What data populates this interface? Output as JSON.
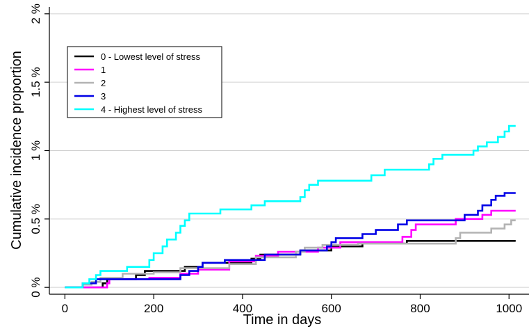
{
  "chart_data": {
    "type": "line",
    "title": "",
    "xlabel": "Time in days",
    "ylabel": "Cumulative incidence proportion",
    "xlim": [
      -35,
      1045
    ],
    "ylim": [
      -0.05,
      2.05
    ],
    "xticks": [
      0,
      200,
      400,
      600,
      800,
      1000
    ],
    "xtick_labels": [
      "0",
      "200",
      "400",
      "600",
      "800",
      "1000"
    ],
    "yticks": [
      0,
      0.5,
      1,
      1.5,
      2
    ],
    "ytick_labels": [
      "0 %",
      "0.5 %",
      "1 %",
      "1.5 %",
      "2 %"
    ],
    "grid": true,
    "legend_position": "top-left",
    "series": [
      {
        "name": "0 - Lowest level of stress",
        "color": "#000000",
        "points": [
          [
            0,
            0
          ],
          [
            85,
            0
          ],
          [
            85,
            0.03
          ],
          [
            95,
            0.03
          ],
          [
            95,
            0.06
          ],
          [
            160,
            0.06
          ],
          [
            160,
            0.09
          ],
          [
            180,
            0.09
          ],
          [
            180,
            0.12
          ],
          [
            270,
            0.12
          ],
          [
            270,
            0.15
          ],
          [
            310,
            0.15
          ],
          [
            310,
            0.18
          ],
          [
            420,
            0.18
          ],
          [
            420,
            0.21
          ],
          [
            440,
            0.21
          ],
          [
            440,
            0.24
          ],
          [
            530,
            0.24
          ],
          [
            530,
            0.27
          ],
          [
            600,
            0.27
          ],
          [
            600,
            0.3
          ],
          [
            670,
            0.3
          ],
          [
            670,
            0.32
          ],
          [
            770,
            0.32
          ],
          [
            770,
            0.34
          ],
          [
            1015,
            0.34
          ]
        ]
      },
      {
        "name": "1",
        "color": "#ff00ff",
        "points": [
          [
            0,
            0
          ],
          [
            95,
            0
          ],
          [
            95,
            0.03
          ],
          [
            100,
            0.03
          ],
          [
            100,
            0.06
          ],
          [
            190,
            0.06
          ],
          [
            190,
            0.07
          ],
          [
            260,
            0.07
          ],
          [
            260,
            0.1
          ],
          [
            300,
            0.1
          ],
          [
            300,
            0.13
          ],
          [
            370,
            0.13
          ],
          [
            370,
            0.19
          ],
          [
            430,
            0.19
          ],
          [
            430,
            0.23
          ],
          [
            480,
            0.23
          ],
          [
            480,
            0.26
          ],
          [
            570,
            0.26
          ],
          [
            570,
            0.29
          ],
          [
            620,
            0.29
          ],
          [
            620,
            0.33
          ],
          [
            670,
            0.33
          ],
          [
            670,
            0.33
          ],
          [
            760,
            0.33
          ],
          [
            760,
            0.37
          ],
          [
            780,
            0.37
          ],
          [
            780,
            0.42
          ],
          [
            790,
            0.42
          ],
          [
            790,
            0.46
          ],
          [
            880,
            0.46
          ],
          [
            880,
            0.5
          ],
          [
            940,
            0.5
          ],
          [
            940,
            0.53
          ],
          [
            960,
            0.53
          ],
          [
            960,
            0.56
          ],
          [
            1015,
            0.56
          ]
        ]
      },
      {
        "name": "2",
        "color": "#b3b3b3",
        "points": [
          [
            0,
            0
          ],
          [
            40,
            0
          ],
          [
            40,
            0.02
          ],
          [
            60,
            0.02
          ],
          [
            60,
            0.04
          ],
          [
            80,
            0.04
          ],
          [
            80,
            0.07
          ],
          [
            130,
            0.07
          ],
          [
            130,
            0.1
          ],
          [
            200,
            0.1
          ],
          [
            200,
            0.11
          ],
          [
            260,
            0.11
          ],
          [
            260,
            0.14
          ],
          [
            370,
            0.14
          ],
          [
            370,
            0.17
          ],
          [
            430,
            0.17
          ],
          [
            430,
            0.22
          ],
          [
            520,
            0.22
          ],
          [
            520,
            0.26
          ],
          [
            540,
            0.26
          ],
          [
            540,
            0.29
          ],
          [
            580,
            0.29
          ],
          [
            580,
            0.31
          ],
          [
            660,
            0.31
          ],
          [
            660,
            0.32
          ],
          [
            880,
            0.32
          ],
          [
            880,
            0.36
          ],
          [
            890,
            0.36
          ],
          [
            890,
            0.4
          ],
          [
            960,
            0.4
          ],
          [
            960,
            0.43
          ],
          [
            990,
            0.43
          ],
          [
            990,
            0.46
          ],
          [
            1005,
            0.46
          ],
          [
            1005,
            0.49
          ],
          [
            1015,
            0.49
          ]
        ]
      },
      {
        "name": "3",
        "color": "#0000e6",
        "points": [
          [
            0,
            0
          ],
          [
            40,
            0
          ],
          [
            40,
            0.03
          ],
          [
            70,
            0.03
          ],
          [
            70,
            0.06
          ],
          [
            260,
            0.06
          ],
          [
            260,
            0.09
          ],
          [
            280,
            0.09
          ],
          [
            280,
            0.12
          ],
          [
            300,
            0.12
          ],
          [
            300,
            0.15
          ],
          [
            310,
            0.15
          ],
          [
            310,
            0.18
          ],
          [
            360,
            0.18
          ],
          [
            360,
            0.2
          ],
          [
            450,
            0.2
          ],
          [
            450,
            0.24
          ],
          [
            530,
            0.24
          ],
          [
            530,
            0.27
          ],
          [
            590,
            0.27
          ],
          [
            590,
            0.3
          ],
          [
            600,
            0.3
          ],
          [
            600,
            0.33
          ],
          [
            610,
            0.33
          ],
          [
            610,
            0.36
          ],
          [
            670,
            0.36
          ],
          [
            670,
            0.39
          ],
          [
            700,
            0.39
          ],
          [
            700,
            0.42
          ],
          [
            750,
            0.42
          ],
          [
            750,
            0.46
          ],
          [
            770,
            0.46
          ],
          [
            770,
            0.49
          ],
          [
            900,
            0.49
          ],
          [
            900,
            0.53
          ],
          [
            930,
            0.53
          ],
          [
            930,
            0.56
          ],
          [
            940,
            0.56
          ],
          [
            940,
            0.6
          ],
          [
            960,
            0.6
          ],
          [
            960,
            0.64
          ],
          [
            970,
            0.64
          ],
          [
            970,
            0.67
          ],
          [
            990,
            0.67
          ],
          [
            990,
            0.69
          ],
          [
            1015,
            0.69
          ]
        ]
      },
      {
        "name": "4 - Highest level of stress",
        "color": "#00ffff",
        "points": [
          [
            0,
            0
          ],
          [
            40,
            0
          ],
          [
            40,
            0.03
          ],
          [
            55,
            0.03
          ],
          [
            55,
            0.06
          ],
          [
            70,
            0.06
          ],
          [
            70,
            0.09
          ],
          [
            80,
            0.09
          ],
          [
            80,
            0.12
          ],
          [
            140,
            0.12
          ],
          [
            140,
            0.15
          ],
          [
            190,
            0.15
          ],
          [
            190,
            0.2
          ],
          [
            200,
            0.2
          ],
          [
            200,
            0.25
          ],
          [
            220,
            0.25
          ],
          [
            220,
            0.3
          ],
          [
            230,
            0.3
          ],
          [
            230,
            0.35
          ],
          [
            250,
            0.35
          ],
          [
            250,
            0.4
          ],
          [
            260,
            0.4
          ],
          [
            260,
            0.45
          ],
          [
            270,
            0.45
          ],
          [
            270,
            0.49
          ],
          [
            280,
            0.49
          ],
          [
            280,
            0.54
          ],
          [
            350,
            0.54
          ],
          [
            350,
            0.57
          ],
          [
            420,
            0.57
          ],
          [
            420,
            0.6
          ],
          [
            450,
            0.6
          ],
          [
            450,
            0.63
          ],
          [
            530,
            0.63
          ],
          [
            530,
            0.66
          ],
          [
            540,
            0.66
          ],
          [
            540,
            0.71
          ],
          [
            550,
            0.71
          ],
          [
            550,
            0.75
          ],
          [
            570,
            0.75
          ],
          [
            570,
            0.78
          ],
          [
            690,
            0.78
          ],
          [
            690,
            0.82
          ],
          [
            720,
            0.82
          ],
          [
            720,
            0.86
          ],
          [
            820,
            0.86
          ],
          [
            820,
            0.9
          ],
          [
            830,
            0.9
          ],
          [
            830,
            0.94
          ],
          [
            850,
            0.94
          ],
          [
            850,
            0.97
          ],
          [
            920,
            0.97
          ],
          [
            920,
            1.0
          ],
          [
            930,
            1.0
          ],
          [
            930,
            1.03
          ],
          [
            950,
            1.03
          ],
          [
            950,
            1.06
          ],
          [
            975,
            1.06
          ],
          [
            975,
            1.1
          ],
          [
            990,
            1.1
          ],
          [
            990,
            1.14
          ],
          [
            1000,
            1.14
          ],
          [
            1000,
            1.18
          ],
          [
            1015,
            1.18
          ]
        ]
      }
    ]
  }
}
